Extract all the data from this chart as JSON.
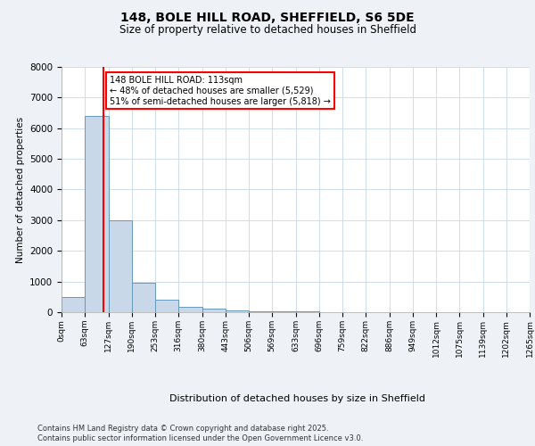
{
  "title_line1": "148, BOLE HILL ROAD, SHEFFIELD, S6 5DE",
  "title_line2": "Size of property relative to detached houses in Sheffield",
  "xlabel": "Distribution of detached houses by size in Sheffield",
  "ylabel": "Number of detached properties",
  "bin_edges": [
    0,
    63,
    127,
    190,
    253,
    316,
    380,
    443,
    506,
    569,
    633,
    696,
    759,
    822,
    886,
    949,
    1012,
    1075,
    1139,
    1202,
    1265
  ],
  "bar_heights": [
    500,
    6400,
    3000,
    950,
    420,
    180,
    130,
    60,
    30,
    20,
    15,
    10,
    8,
    6,
    5,
    4,
    3,
    2,
    1,
    1
  ],
  "bar_color": "#c8d8e8",
  "bar_edge_color": "#6699bb",
  "property_line_x": 113,
  "property_line_color": "red",
  "annotation_text": "148 BOLE HILL ROAD: 113sqm\n← 48% of detached houses are smaller (5,529)\n51% of semi-detached houses are larger (5,818) →",
  "annotation_box_color": "white",
  "annotation_box_edge_color": "red",
  "footer_line1": "Contains HM Land Registry data © Crown copyright and database right 2025.",
  "footer_line2": "Contains public sector information licensed under the Open Government Licence v3.0.",
  "background_color": "#eef2f6",
  "plot_bg_color": "white",
  "ylim": [
    0,
    8000
  ],
  "yticks": [
    0,
    1000,
    2000,
    3000,
    4000,
    5000,
    6000,
    7000,
    8000
  ],
  "tick_labels": [
    "0sqm",
    "63sqm",
    "127sqm",
    "190sqm",
    "253sqm",
    "316sqm",
    "380sqm",
    "443sqm",
    "506sqm",
    "569sqm",
    "633sqm",
    "696sqm",
    "759sqm",
    "822sqm",
    "886sqm",
    "949sqm",
    "1012sqm",
    "1075sqm",
    "1139sqm",
    "1202sqm",
    "1265sqm"
  ]
}
